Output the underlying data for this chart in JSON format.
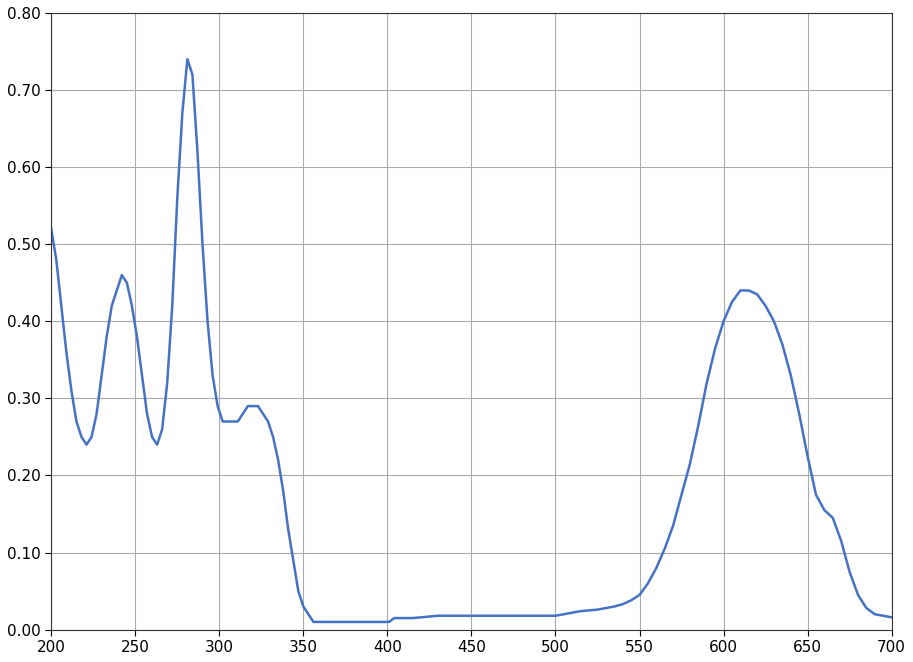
{
  "xlabel": "",
  "ylabel": "",
  "xlim": [
    200,
    700
  ],
  "ylim": [
    0.0,
    0.8
  ],
  "xticks": [
    200,
    250,
    300,
    350,
    400,
    450,
    500,
    550,
    600,
    650,
    700
  ],
  "yticks": [
    0.0,
    0.1,
    0.2,
    0.3,
    0.4,
    0.5,
    0.6,
    0.7,
    0.8
  ],
  "line_color": "#4472C4",
  "line_width": 1.8,
  "background_color": "#ffffff",
  "grid_color": "#aaaaaa",
  "x": [
    200,
    203,
    206,
    209,
    212,
    215,
    218,
    221,
    224,
    227,
    230,
    233,
    236,
    239,
    242,
    245,
    248,
    251,
    254,
    257,
    260,
    263,
    266,
    269,
    272,
    275,
    278,
    281,
    284,
    287,
    290,
    293,
    296,
    299,
    302,
    305,
    308,
    311,
    314,
    317,
    320,
    323,
    326,
    329,
    332,
    335,
    338,
    341,
    344,
    347,
    350,
    353,
    356,
    359,
    362,
    365,
    368,
    371,
    374,
    377,
    380,
    383,
    386,
    389,
    392,
    395,
    398,
    401,
    404,
    407,
    410,
    415,
    420,
    425,
    430,
    435,
    440,
    445,
    450,
    455,
    460,
    465,
    470,
    475,
    480,
    485,
    490,
    495,
    500,
    505,
    510,
    515,
    520,
    525,
    530,
    535,
    540,
    545,
    550,
    555,
    560,
    565,
    570,
    575,
    580,
    585,
    590,
    595,
    600,
    605,
    610,
    615,
    620,
    625,
    630,
    635,
    640,
    645,
    650,
    655,
    660,
    665,
    670,
    675,
    680,
    685,
    690,
    695,
    700
  ],
  "y": [
    0.52,
    0.48,
    0.42,
    0.36,
    0.31,
    0.27,
    0.25,
    0.24,
    0.25,
    0.28,
    0.33,
    0.38,
    0.42,
    0.44,
    0.46,
    0.45,
    0.42,
    0.38,
    0.33,
    0.28,
    0.25,
    0.24,
    0.26,
    0.32,
    0.42,
    0.56,
    0.67,
    0.74,
    0.72,
    0.62,
    0.5,
    0.4,
    0.33,
    0.29,
    0.27,
    0.27,
    0.27,
    0.27,
    0.28,
    0.29,
    0.29,
    0.29,
    0.28,
    0.27,
    0.25,
    0.22,
    0.18,
    0.13,
    0.09,
    0.05,
    0.03,
    0.02,
    0.01,
    0.01,
    0.01,
    0.01,
    0.01,
    0.01,
    0.01,
    0.01,
    0.01,
    0.01,
    0.01,
    0.01,
    0.01,
    0.01,
    0.01,
    0.01,
    0.015,
    0.015,
    0.015,
    0.015,
    0.016,
    0.017,
    0.018,
    0.018,
    0.018,
    0.018,
    0.018,
    0.018,
    0.018,
    0.018,
    0.018,
    0.018,
    0.018,
    0.018,
    0.018,
    0.018,
    0.018,
    0.02,
    0.022,
    0.024,
    0.025,
    0.026,
    0.028,
    0.03,
    0.033,
    0.038,
    0.045,
    0.06,
    0.08,
    0.105,
    0.135,
    0.175,
    0.215,
    0.265,
    0.32,
    0.365,
    0.4,
    0.425,
    0.44,
    0.44,
    0.435,
    0.42,
    0.4,
    0.37,
    0.33,
    0.28,
    0.225,
    0.175,
    0.155,
    0.145,
    0.115,
    0.075,
    0.045,
    0.028,
    0.02,
    0.018,
    0.016
  ]
}
